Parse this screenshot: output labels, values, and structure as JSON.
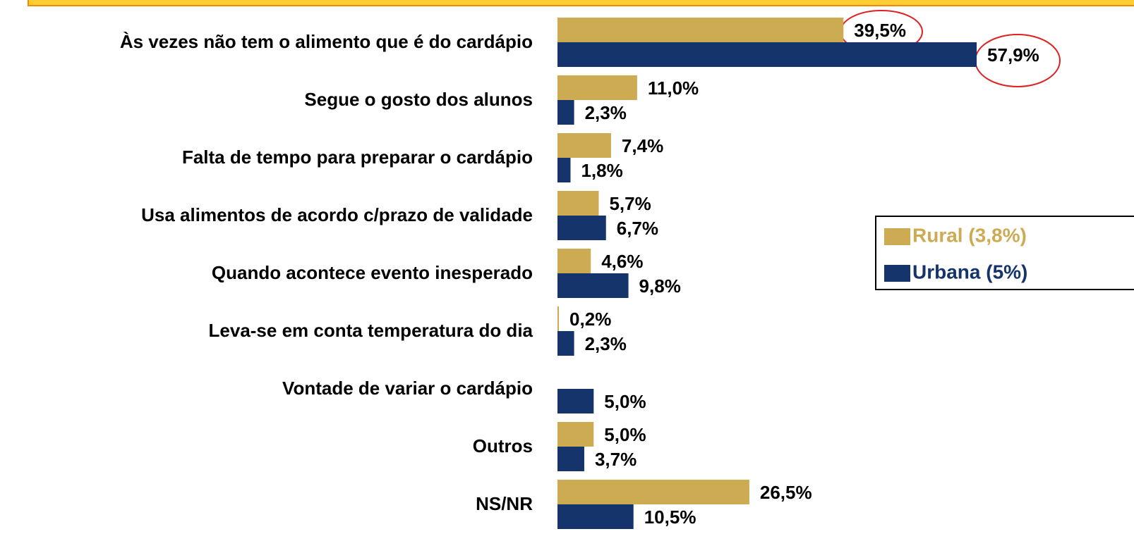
{
  "chart_data": {
    "type": "bar",
    "orientation": "horizontal",
    "categories": [
      "Às vezes não tem o alimento que é do cardápio",
      "Segue o gosto dos alunos",
      "Falta de tempo para preparar o cardápio",
      "Usa alimentos de acordo c/prazo de validade",
      "Quando acontece evento inesperado",
      "Leva-se em conta temperatura do dia",
      "Vontade de variar o cardápio",
      "Outros",
      "NS/NR"
    ],
    "series": [
      {
        "name": "Rural (3,8%)",
        "color": "#cdab52",
        "values": [
          39.5,
          11.0,
          7.4,
          5.7,
          4.6,
          0.2,
          null,
          5.0,
          26.5
        ],
        "value_labels": [
          "39,5%",
          "11,0%",
          "7,4%",
          "5,7%",
          "4,6%",
          "0,2%",
          null,
          "5,0%",
          "26,5%"
        ]
      },
      {
        "name": "Urbana (5%)",
        "color": "#14346b",
        "values": [
          57.9,
          2.3,
          1.8,
          6.7,
          9.8,
          2.3,
          5.0,
          3.7,
          10.5
        ],
        "value_labels": [
          "57,9%",
          "2,3%",
          "1,8%",
          "6,7%",
          "9,8%",
          "2,3%",
          "5,0%",
          "3,7%",
          "10,5%"
        ]
      }
    ],
    "legend": "right"
  }
}
